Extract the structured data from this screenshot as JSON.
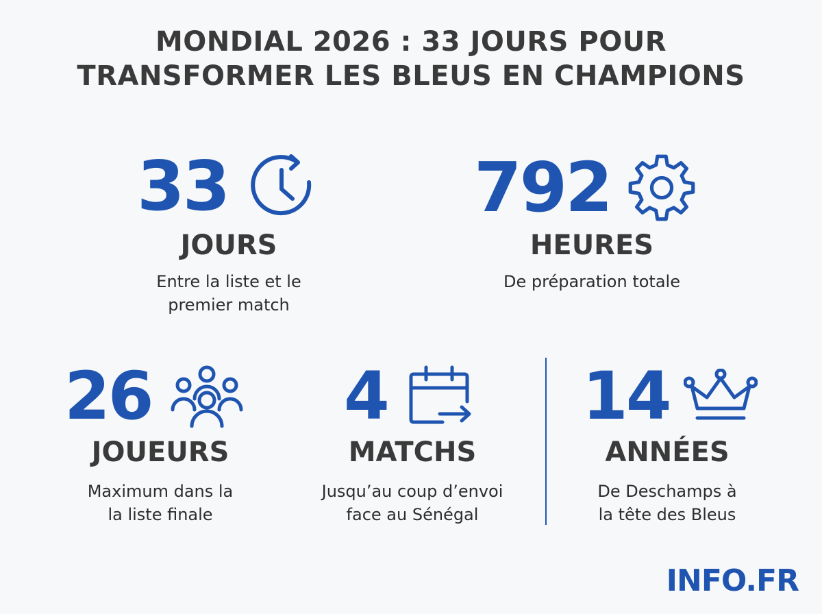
{
  "title": {
    "line1": "MONDIAL 2026 : 33 JOURS POUR",
    "line2": "TRANSFORMER LES BLEUS EN CHAMPIONS"
  },
  "stats": {
    "jours": {
      "value": "33",
      "unit": "JOURS",
      "desc_line1": "Entre la liste et le",
      "desc_line2": "premier match",
      "icon": "clock-refresh-icon"
    },
    "heures": {
      "value": "792",
      "unit": "HEURES",
      "desc_line1": "De préparation totale",
      "icon": "gear-icon"
    },
    "joueurs": {
      "value": "26",
      "unit": "JOUEURS",
      "desc_line1": "Maximum dans la",
      "desc_line2": "la liste finale",
      "icon": "group-icon"
    },
    "matchs": {
      "value": "4",
      "unit": "MATCHS",
      "desc_line1": "Jusqu’au coup d’envoi",
      "desc_line2": "face au Sénégal",
      "icon": "calendar-arrow-icon"
    },
    "annees": {
      "value": "14",
      "unit": "ANNÉES",
      "desc_line1": "De Deschamps à",
      "desc_line2": "la tête des Bleus",
      "icon": "crown-icon"
    }
  },
  "brand": "INFO.FR",
  "colors": {
    "accent": "#1f55b0",
    "text": "#3a3a3a",
    "background": "#f7f8fa"
  }
}
